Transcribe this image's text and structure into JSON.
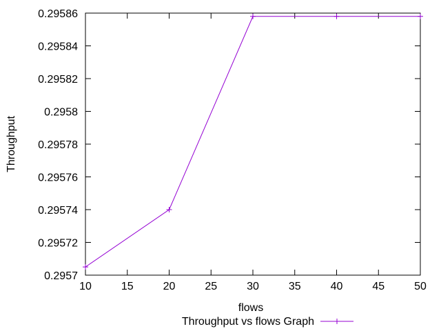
{
  "chart_data": {
    "type": "line",
    "xlabel": "flows",
    "ylabel": "Throughput",
    "xlim": [
      10,
      50
    ],
    "ylim": [
      0.2957,
      0.29586
    ],
    "xticks": [
      {
        "value": 10,
        "label": "10"
      },
      {
        "value": 15,
        "label": "15"
      },
      {
        "value": 20,
        "label": "20"
      },
      {
        "value": 25,
        "label": "25"
      },
      {
        "value": 30,
        "label": "30"
      },
      {
        "value": 35,
        "label": "35"
      },
      {
        "value": 40,
        "label": "40"
      },
      {
        "value": 45,
        "label": "45"
      },
      {
        "value": 50,
        "label": "50"
      }
    ],
    "yticks": [
      {
        "value": 0.2957,
        "label": "0.2957"
      },
      {
        "value": 0.29572,
        "label": "0.29572"
      },
      {
        "value": 0.29574,
        "label": "0.29574"
      },
      {
        "value": 0.29576,
        "label": "0.29576"
      },
      {
        "value": 0.29578,
        "label": "0.29578"
      },
      {
        "value": 0.2958,
        "label": "0.2958"
      },
      {
        "value": 0.29582,
        "label": "0.29582"
      },
      {
        "value": 0.29584,
        "label": "0.29584"
      },
      {
        "value": 0.29586,
        "label": "0.29586"
      }
    ],
    "grid": false,
    "legend_position": "bottom-center",
    "series": [
      {
        "name": "Throughput vs flows Graph",
        "color": "#9400d3",
        "marker": "plus",
        "x": [
          10,
          20,
          30,
          40,
          50
        ],
        "y": [
          0.295705,
          0.29574,
          0.295858,
          0.295858,
          0.295858
        ]
      }
    ]
  }
}
